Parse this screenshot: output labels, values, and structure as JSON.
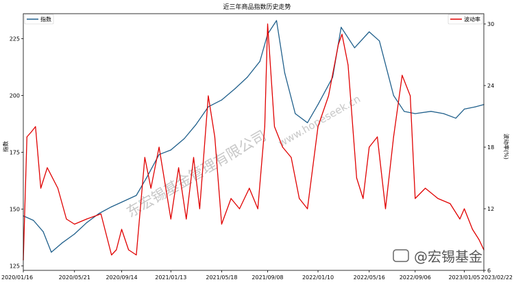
{
  "chart_data": {
    "type": "line",
    "title": "近三年商品指数历史走势",
    "ylabel": "指数",
    "y2label": "波动率(%)",
    "ylim": [
      123,
      236
    ],
    "y2lim": [
      6,
      31
    ],
    "yticks": [
      125,
      150,
      175,
      200,
      225
    ],
    "y2ticks": [
      6,
      12,
      18,
      24,
      30
    ],
    "xticks": [
      "2020/01/16",
      "2020/05/21",
      "2020/09/14",
      "2021/01/13",
      "2021/05/18",
      "2021/09/08",
      "2022/01/10",
      "2022/05/16",
      "2022/09/06",
      "2023/01/05",
      "2023/02/22"
    ],
    "grid": false,
    "legend": [
      {
        "name": "指数",
        "position": "top-left",
        "color": "#1f5f8b"
      },
      {
        "name": "波动率",
        "position": "top-right",
        "color": "#e00000"
      }
    ],
    "series": [
      {
        "name": "指数",
        "axis": "left",
        "color": "#1f5f8b",
        "x": [
          "2020/01/16",
          "2020/02/10",
          "2020/03/05",
          "2020/03/25",
          "2020/04/20",
          "2020/05/21",
          "2020/06/20",
          "2020/07/20",
          "2020/08/20",
          "2020/09/14",
          "2020/10/20",
          "2020/11/15",
          "2020/12/15",
          "2021/01/13",
          "2021/02/15",
          "2021/03/15",
          "2021/04/15",
          "2021/05/18",
          "2021/06/20",
          "2021/07/20",
          "2021/08/20",
          "2021/09/08",
          "2021/09/30",
          "2021/10/20",
          "2021/11/15",
          "2021/12/15",
          "2022/01/10",
          "2022/02/15",
          "2022/03/08",
          "2022/04/10",
          "2022/05/16",
          "2022/06/10",
          "2022/07/15",
          "2022/08/10",
          "2022/09/06",
          "2022/10/15",
          "2022/11/15",
          "2022/12/15",
          "2023/01/05",
          "2023/02/01",
          "2023/02/22"
        ],
        "values": [
          147,
          145,
          140,
          131,
          135,
          139,
          144,
          148,
          151,
          153,
          156,
          164,
          174,
          176,
          181,
          187,
          195,
          198,
          203,
          208,
          215,
          227,
          233,
          210,
          192,
          188,
          196,
          208,
          230,
          221,
          228,
          224,
          200,
          193,
          192,
          193,
          192,
          190,
          194,
          195,
          196
        ]
      },
      {
        "name": "波动率",
        "axis": "right",
        "color": "#e00000",
        "x": [
          "2020/01/16",
          "2020/01/25",
          "2020/02/05",
          "2020/02/15",
          "2020/02/28",
          "2020/03/15",
          "2020/04/10",
          "2020/05/01",
          "2020/05/21",
          "2020/06/20",
          "2020/07/25",
          "2020/08/20",
          "2020/09/01",
          "2020/09/14",
          "2020/10/01",
          "2020/10/20",
          "2020/11/10",
          "2020/11/25",
          "2020/12/15",
          "2021/01/13",
          "2021/02/01",
          "2021/02/20",
          "2021/03/10",
          "2021/03/25",
          "2021/04/15",
          "2021/05/01",
          "2021/05/18",
          "2021/06/10",
          "2021/07/01",
          "2021/07/25",
          "2021/08/15",
          "2021/09/01",
          "2021/09/08",
          "2021/09/25",
          "2021/10/15",
          "2021/11/05",
          "2021/11/25",
          "2021/12/15",
          "2022/01/10",
          "2022/02/05",
          "2022/03/01",
          "2022/03/10",
          "2022/03/25",
          "2022/04/15",
          "2022/05/01",
          "2022/05/16",
          "2022/06/05",
          "2022/06/25",
          "2022/07/15",
          "2022/08/05",
          "2022/08/25",
          "2022/09/06",
          "2022/10/01",
          "2022/11/01",
          "2022/12/01",
          "2022/12/25",
          "2023/01/05",
          "2023/01/25",
          "2023/02/10",
          "2023/02/22"
        ],
        "values": [
          7,
          19,
          19.5,
          20,
          14,
          16,
          14,
          11,
          10.5,
          11,
          11.5,
          7.5,
          8,
          10,
          8,
          7.5,
          17,
          14,
          18,
          11,
          16,
          11,
          17,
          12,
          23,
          19,
          10.5,
          13,
          12,
          14,
          12,
          20,
          30,
          20,
          18,
          17,
          13,
          12,
          20,
          23,
          28,
          29,
          26,
          15,
          13,
          18,
          19,
          12,
          19,
          25,
          23,
          13,
          14,
          13,
          12.5,
          11,
          12,
          10,
          9,
          8
        ]
      }
    ]
  },
  "watermark": {
    "text": "东宏锡基金管理有限公司",
    "url": "www.hopeseek.cn"
  },
  "brand": {
    "name": "@宏锡基金"
  }
}
